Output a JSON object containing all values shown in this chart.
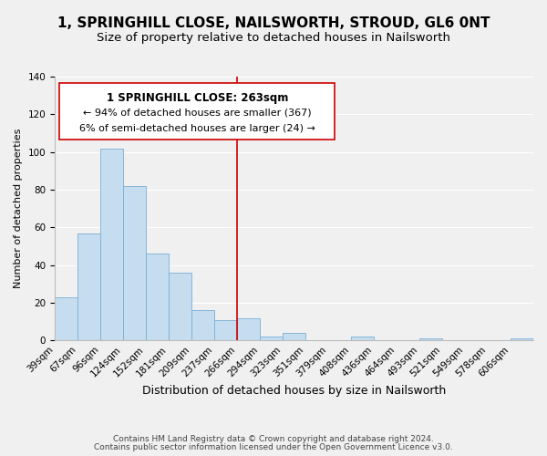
{
  "title": "1, SPRINGHILL CLOSE, NAILSWORTH, STROUD, GL6 0NT",
  "subtitle": "Size of property relative to detached houses in Nailsworth",
  "xlabel": "Distribution of detached houses by size in Nailsworth",
  "ylabel": "Number of detached properties",
  "bar_labels": [
    "39sqm",
    "67sqm",
    "96sqm",
    "124sqm",
    "152sqm",
    "181sqm",
    "209sqm",
    "237sqm",
    "266sqm",
    "294sqm",
    "323sqm",
    "351sqm",
    "379sqm",
    "408sqm",
    "436sqm",
    "464sqm",
    "493sqm",
    "521sqm",
    "549sqm",
    "578sqm",
    "606sqm"
  ],
  "bar_values": [
    23,
    57,
    102,
    82,
    46,
    36,
    16,
    11,
    12,
    2,
    4,
    0,
    0,
    2,
    0,
    0,
    1,
    0,
    0,
    0,
    1
  ],
  "bar_color": "#c6ddf0",
  "bar_edge_color": "#7aafd4",
  "vline_color": "#cc0000",
  "ylim": [
    0,
    140
  ],
  "annotation_title": "1 SPRINGHILL CLOSE: 263sqm",
  "annotation_line1": "← 94% of detached houses are smaller (367)",
  "annotation_line2": "6% of semi-detached houses are larger (24) →",
  "annotation_box_color": "#ffffff",
  "annotation_box_edge": "#cc0000",
  "footer1": "Contains HM Land Registry data © Crown copyright and database right 2024.",
  "footer2": "Contains public sector information licensed under the Open Government Licence v3.0.",
  "title_fontsize": 11,
  "subtitle_fontsize": 9.5,
  "xlabel_fontsize": 9,
  "ylabel_fontsize": 8,
  "tick_fontsize": 7.5,
  "ann_title_fontsize": 8.5,
  "ann_text_fontsize": 8,
  "footer_fontsize": 6.5,
  "background_color": "#f0f0f0"
}
